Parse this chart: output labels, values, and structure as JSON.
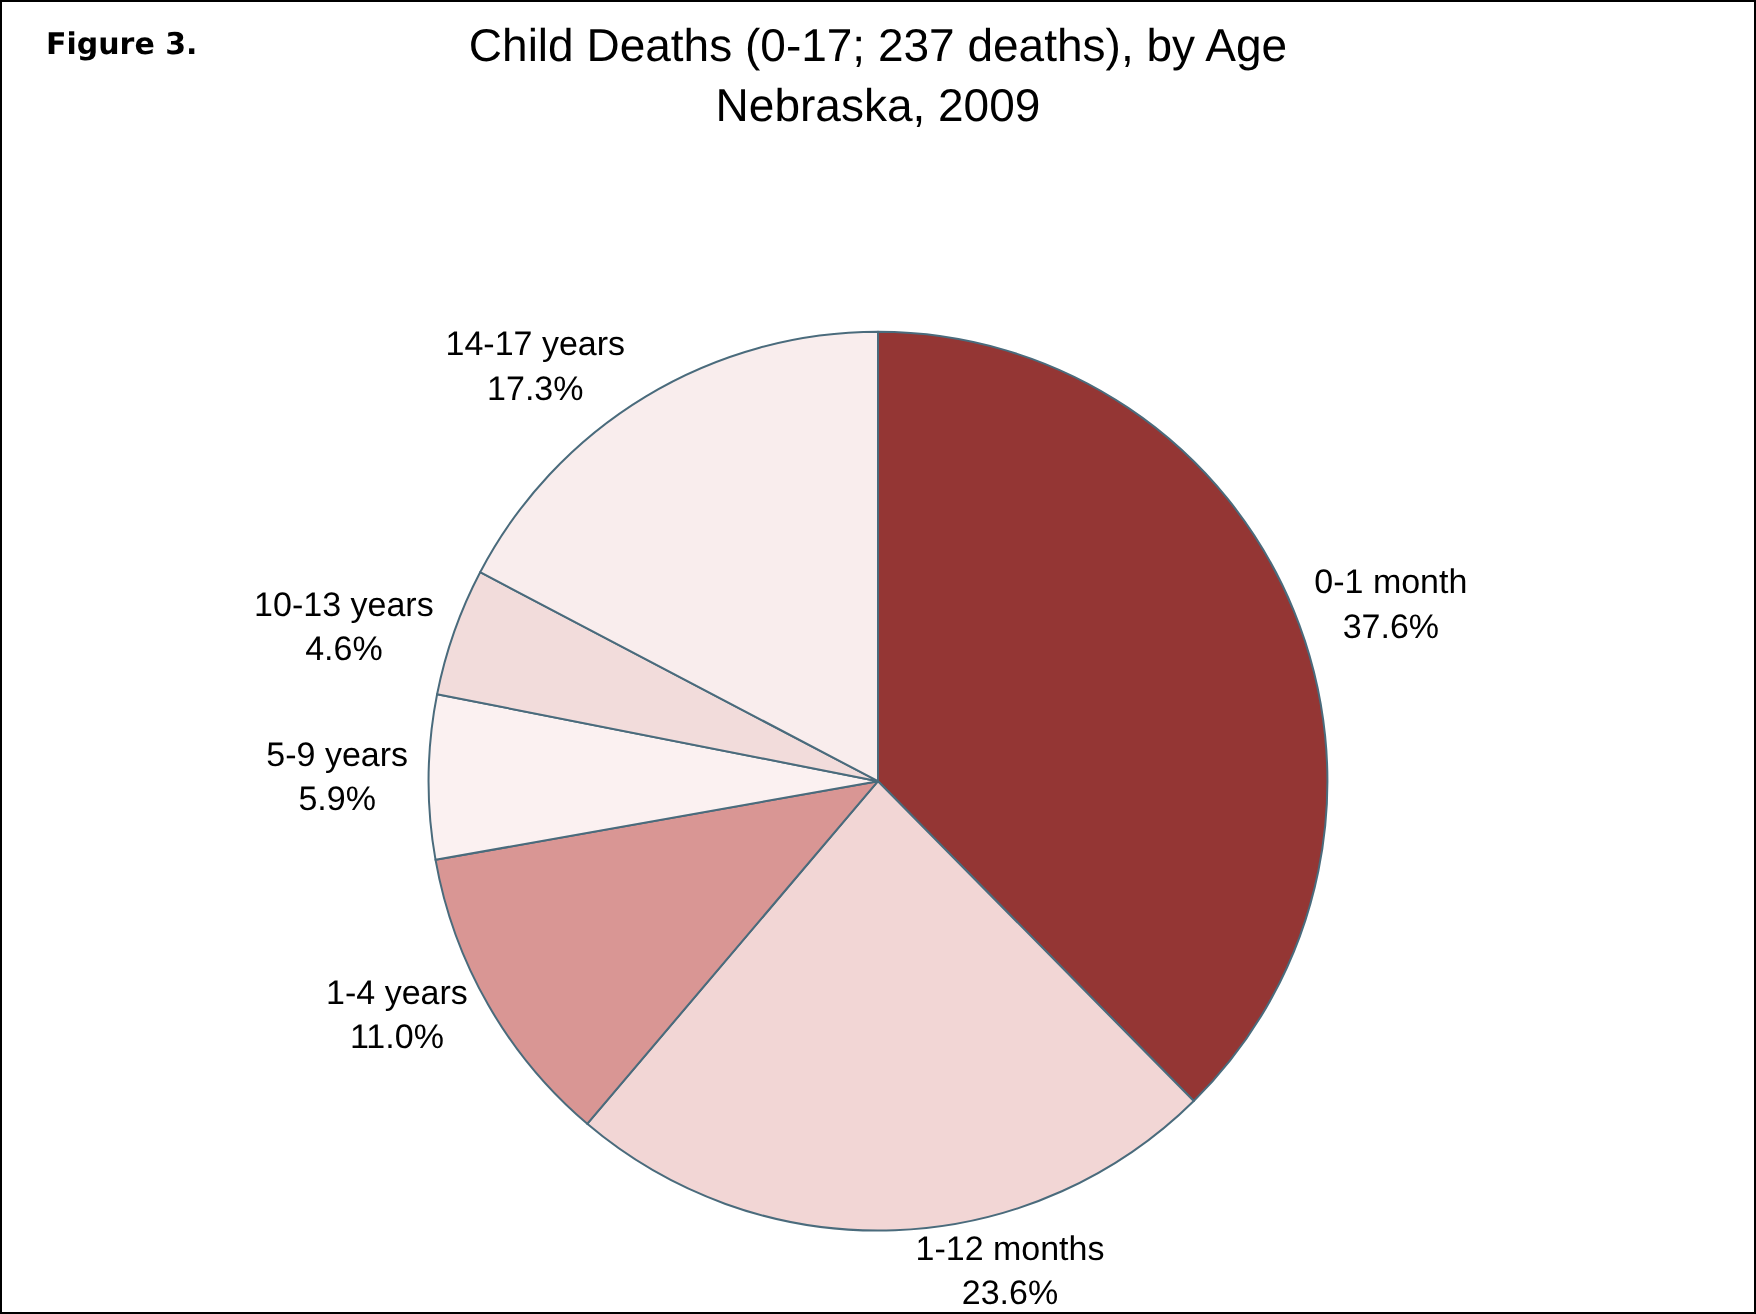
{
  "chart_data": {
    "type": "pie",
    "title": "Child Deaths (0-17; 237 deaths), by Age",
    "subtitle": "Nebraska, 2009",
    "categories": [
      "0-1 month",
      "1-12 months",
      "1-4 years",
      "5-9 years",
      "10-13 years",
      "14-17 years"
    ],
    "values": [
      37.6,
      23.6,
      11.0,
      5.9,
      4.6,
      17.3
    ],
    "colors": [
      "#943634",
      "#f2d6d5",
      "#d99694",
      "#fbf1f1",
      "#f2dcdb",
      "#f9eded"
    ],
    "value_labels": [
      "37.6%",
      "23.6%",
      "11.0%",
      "5.9%",
      "4.6%",
      "17.3%"
    ],
    "annotations": [
      "Figure 3."
    ],
    "legend": false
  }
}
